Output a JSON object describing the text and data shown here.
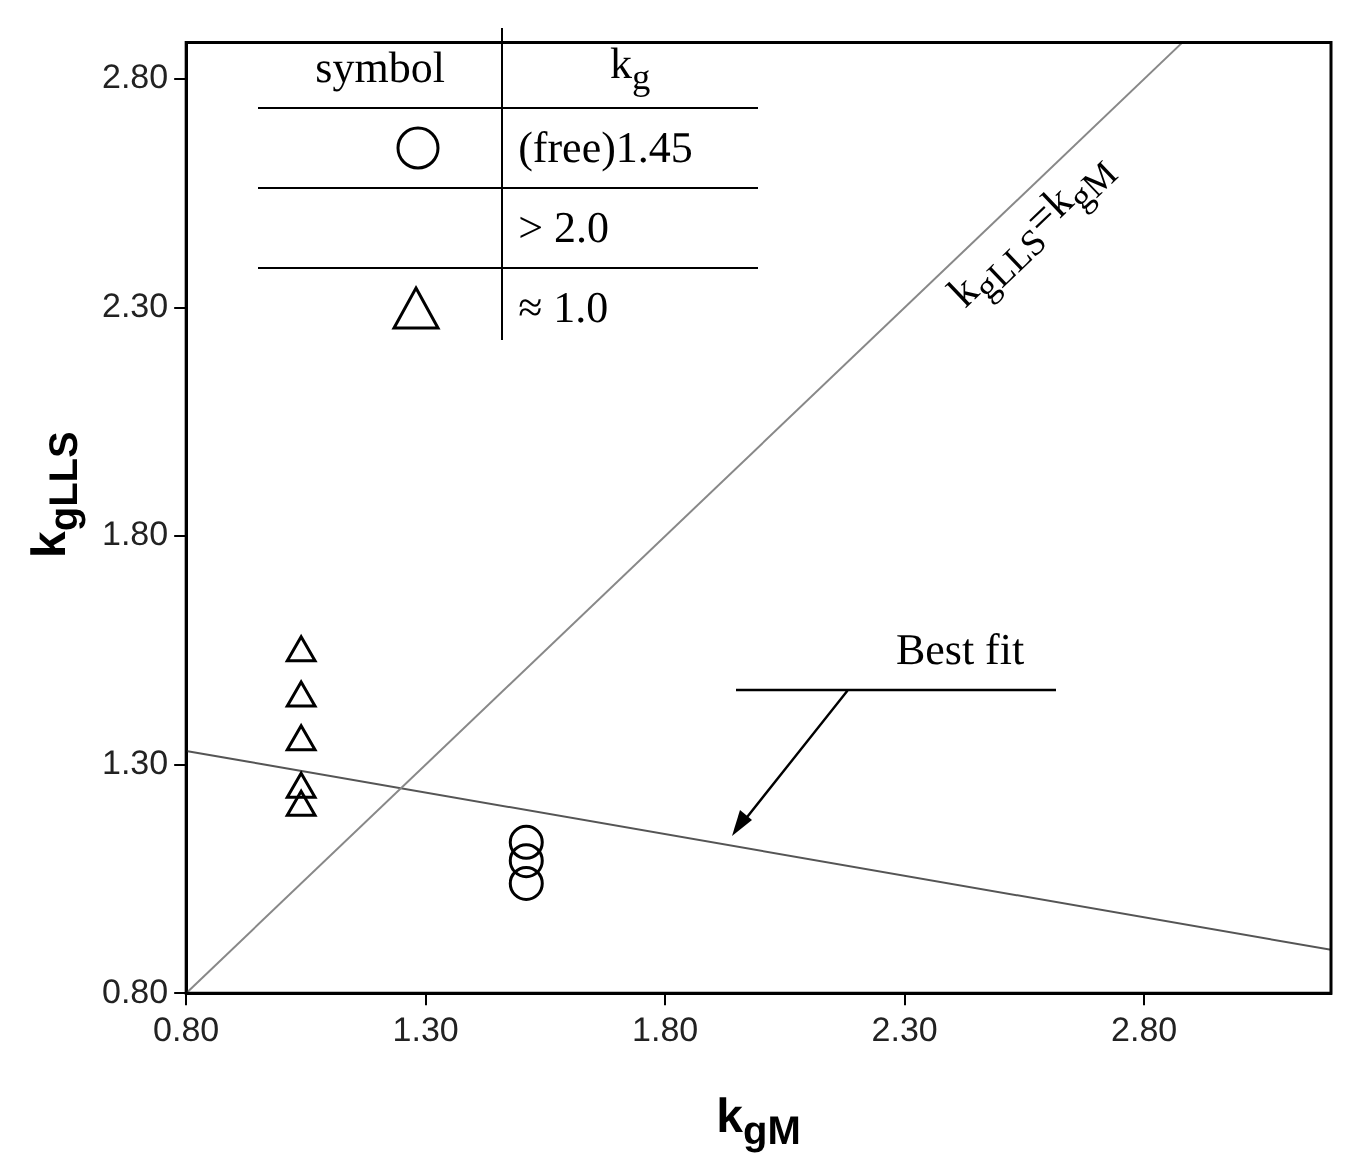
{
  "chart_data": {
    "type": "scatter",
    "xlabel": "k$_{gM}$",
    "ylabel": "k$_{gLLS}$",
    "legend_title": "symbol",
    "annotations": [
      "k$_{g}$",
      "k$_{gLLS}$=k$_{gM}$",
      "Best fit"
    ],
    "xlim": [
      0.8,
      3.19
    ],
    "ylim": [
      0.8,
      2.88
    ],
    "xticks": [
      {
        "value": 0.8,
        "label": "0.80"
      },
      {
        "value": 1.3,
        "label": "1.30"
      },
      {
        "value": 1.8,
        "label": "1.80"
      },
      {
        "value": 2.3,
        "label": "2.30"
      },
      {
        "value": 2.8,
        "label": "2.80"
      }
    ],
    "yticks": [
      {
        "value": 0.8,
        "label": "0.80"
      },
      {
        "value": 1.3,
        "label": "1.30"
      },
      {
        "value": 1.8,
        "label": "1.80"
      },
      {
        "value": 2.3,
        "label": "2.30"
      },
      {
        "value": 2.8,
        "label": "2.80"
      }
    ],
    "grid": false,
    "legend": "top left",
    "series": [
      {
        "name": "(free)1.45",
        "marker": "circle",
        "color": "#000000",
        "x": [
          1.51,
          1.51,
          1.51
        ],
        "values": [
          1.13,
          1.09,
          1.04
        ]
      },
      {
        "name": "> 2.0",
        "marker": "none",
        "color": "#000000"
      },
      {
        "name": "≈ 1.0",
        "marker": "triangle",
        "color": "#000000",
        "x": [
          1.04,
          1.04,
          1.04,
          1.04,
          1.04
        ],
        "values": [
          1.545,
          1.446,
          1.35,
          1.246,
          1.207
        ]
      },
      {
        "type": "line",
        "color": "#888888",
        "x": [
          0.8,
          2.88
        ],
        "values": [
          0.8,
          2.88
        ]
      },
      {
        "type": "line",
        "color": "#555555",
        "x": [
          0.8,
          3.19
        ],
        "values": [
          1.33,
          0.895
        ]
      }
    ]
  }
}
